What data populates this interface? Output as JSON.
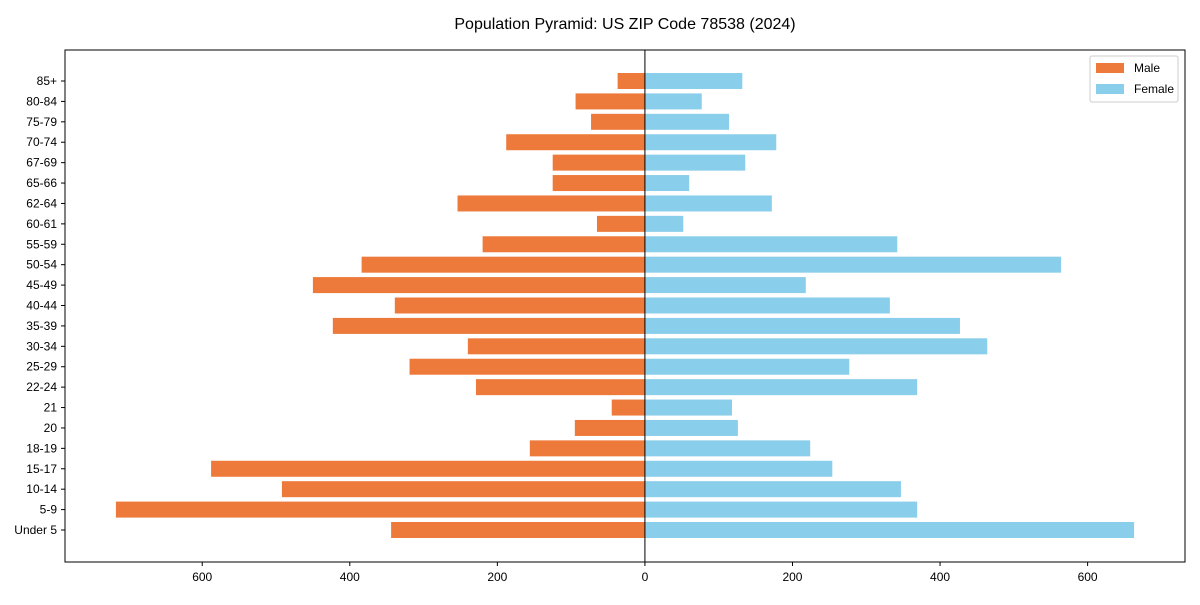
{
  "chart_data": {
    "type": "bar",
    "orientation": "horizontal-pyramid",
    "title": "Population Pyramid: US ZIP Code 78538 (2024)",
    "xlabel": "",
    "ylabel": "",
    "xlim": [
      -786,
      732
    ],
    "xticks": [
      -600,
      -400,
      -200,
      0,
      200,
      400,
      600
    ],
    "xtick_labels": [
      "600",
      "400",
      "200",
      "0",
      "200",
      "400",
      "600"
    ],
    "categories": [
      "85+",
      "80-84",
      "75-79",
      "70-74",
      "67-69",
      "65-66",
      "62-64",
      "60-61",
      "55-59",
      "50-54",
      "45-49",
      "40-44",
      "35-39",
      "30-34",
      "25-29",
      "22-24",
      "21",
      "20",
      "18-19",
      "15-17",
      "10-14",
      "5-9",
      "Under 5"
    ],
    "series": [
      {
        "name": "Male",
        "color": "#ED7A3B",
        "values": [
          37,
          94,
          73,
          188,
          125,
          125,
          254,
          65,
          220,
          384,
          450,
          339,
          423,
          240,
          319,
          229,
          45,
          95,
          156,
          588,
          492,
          717,
          344
        ]
      },
      {
        "name": "Female",
        "color": "#89CEEA",
        "values": [
          132,
          77,
          114,
          178,
          136,
          60,
          172,
          52,
          342,
          564,
          218,
          332,
          427,
          464,
          277,
          369,
          118,
          126,
          224,
          254,
          347,
          369,
          663
        ]
      }
    ],
    "legend": "top-right",
    "grid": false
  }
}
